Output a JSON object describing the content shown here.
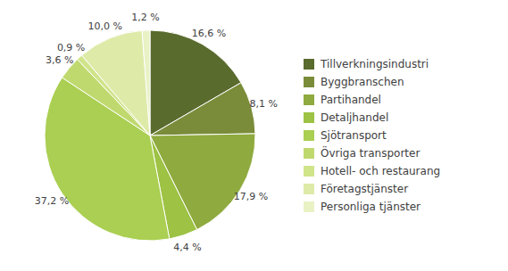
{
  "chart_data": {
    "type": "pie",
    "categories": [
      "Tillverkningsindustri",
      "Byggbranschen",
      "Partihandel",
      "Detaljhandel",
      "Sjötransport",
      "Övriga transporter",
      "Hotell- och restaurang",
      "Företagstjänster",
      "Personliga tjänster"
    ],
    "values": [
      16.6,
      8.1,
      17.9,
      4.4,
      37.2,
      3.6,
      0.9,
      10.0,
      1.2
    ],
    "value_labels": [
      "16,6 %",
      "8,1 %",
      "17,9 %",
      "4,4 %",
      "37,2 %",
      "3,6 %",
      "0,9 %",
      "10,0 %",
      "1,2 %"
    ],
    "colors": [
      "#5a6b2e",
      "#7a8c3a",
      "#8faa3e",
      "#9dc244",
      "#aacf52",
      "#c0d96e",
      "#d0e48a",
      "#deeaa8",
      "#e8f2c4"
    ],
    "data_labels": true,
    "legend": "right"
  }
}
